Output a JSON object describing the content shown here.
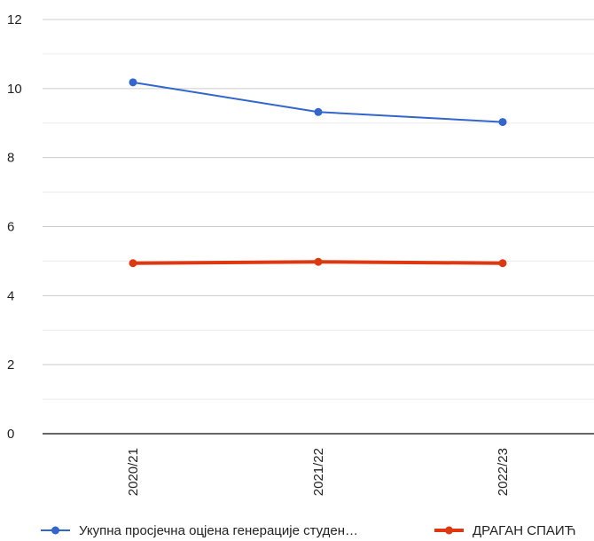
{
  "chart_data": {
    "type": "line",
    "categories": [
      "2020/21",
      "2021/22",
      "2022/23"
    ],
    "series": [
      {
        "name": "Укупна просјечна оцјена генерације студен…",
        "values": [
          10.18,
          9.32,
          9.03
        ],
        "color": "#3366cc"
      },
      {
        "name": "ДРАГАН СПАИЋ",
        "values": [
          4.94,
          4.98,
          4.94
        ],
        "color": "#dc3912"
      }
    ],
    "ylim": [
      0,
      12
    ],
    "yticks": [
      "0",
      "2",
      "4",
      "6",
      "8",
      "10",
      "12"
    ],
    "grid": true,
    "legend": "bottom"
  }
}
